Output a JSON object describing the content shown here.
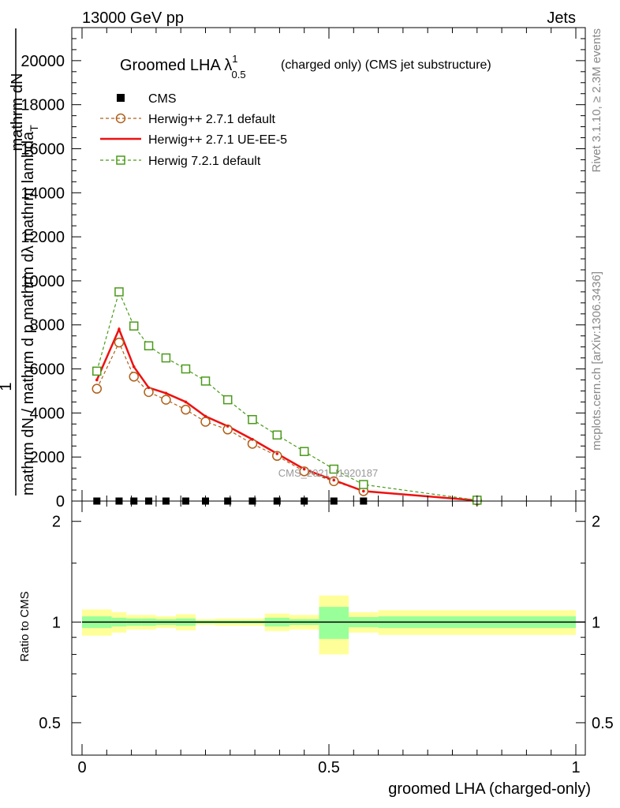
{
  "header": {
    "left": "13000 GeV pp",
    "right": "Jets",
    "side_top": "Rivet 3.1.10, ≥ 2.3M events",
    "side_bottom": "mcplots.cern.ch [arXiv:1306.3436]",
    "watermark": "CMS_2021_I1920187"
  },
  "chart_data": [
    {
      "type": "line",
      "title": "Groomed LHA λ",
      "title_sup": "1",
      "title_sub": "0.5",
      "title_suffix": "(charged only) (CMS jet substructure)",
      "ylabel_top": "mathrm dN",
      "ylabel_bottom": "mathrm dN / mathrm d p mathrm dλ  mathrm lambda",
      "ylabel_bottom_sub": "T",
      "ylabel_one": "1",
      "ylim": [
        0,
        21500
      ],
      "ytick_values": [
        0,
        2000,
        4000,
        6000,
        8000,
        10000,
        12000,
        14000,
        16000,
        18000,
        20000
      ],
      "ytick_labels": [
        "0",
        "2000",
        "4000",
        "6000",
        "8000",
        "10000",
        "12000",
        "14000",
        "16000",
        "18000",
        "20000"
      ],
      "xlim": [
        0,
        1
      ],
      "legend_position": "top-left",
      "series": [
        {
          "name": "CMS",
          "style": "data",
          "color": "#000000",
          "x": [
            0.03,
            0.075,
            0.105,
            0.135,
            0.17,
            0.21,
            0.25,
            0.295,
            0.345,
            0.395,
            0.45,
            0.51,
            0.57
          ],
          "values": [
            0,
            0,
            0,
            0,
            0,
            0,
            0,
            0,
            0,
            0,
            0,
            0,
            0
          ]
        },
        {
          "name": "Herwig++ 2.7.1 default",
          "style": "circle-dashed",
          "color": "#b0601a",
          "x": [
            0.03,
            0.075,
            0.105,
            0.135,
            0.17,
            0.21,
            0.25,
            0.295,
            0.345,
            0.395,
            0.45,
            0.51,
            0.57,
            0.8
          ],
          "values": [
            5100,
            7200,
            5650,
            4950,
            4600,
            4150,
            3600,
            3250,
            2600,
            2050,
            1350,
            900,
            450,
            30
          ]
        },
        {
          "name": "Herwig++ 2.7.1 UE-EE-5",
          "style": "solid",
          "color": "#ee1111",
          "x": [
            0.03,
            0.075,
            0.105,
            0.135,
            0.17,
            0.21,
            0.25,
            0.295,
            0.345,
            0.395,
            0.45,
            0.51,
            0.57,
            0.8
          ],
          "values": [
            5500,
            7800,
            6100,
            5150,
            4900,
            4500,
            3850,
            3400,
            2800,
            2150,
            1450,
            950,
            450,
            30
          ]
        },
        {
          "name": "Herwig 7.2.1 default",
          "style": "square-dashed",
          "color": "#4a9a1a",
          "x": [
            0.03,
            0.075,
            0.105,
            0.135,
            0.17,
            0.21,
            0.25,
            0.295,
            0.345,
            0.395,
            0.45,
            0.51,
            0.57,
            0.8
          ],
          "values": [
            5900,
            9500,
            7950,
            7050,
            6500,
            6000,
            5450,
            4600,
            3700,
            3000,
            2250,
            1450,
            750,
            40
          ]
        }
      ]
    },
    {
      "type": "line",
      "ylabel": "Ratio to CMS",
      "xlabel": "groomed LHA (charged-only)",
      "ylim": [
        0.4,
        2.3
      ],
      "xlim": [
        0,
        1
      ],
      "ytick_values": [
        0.5,
        1,
        2
      ],
      "ytick_labels": [
        "0.5",
        "1",
        "2"
      ],
      "xtick_values": [
        0,
        0.5,
        1
      ],
      "xtick_labels": [
        "0",
        "0.5",
        "1"
      ],
      "reference": 1,
      "bins": [
        {
          "lo": 0.0,
          "hi": 0.06,
          "stat": 0.04,
          "tot": 0.09
        },
        {
          "lo": 0.06,
          "hi": 0.09,
          "stat": 0.03,
          "tot": 0.07
        },
        {
          "lo": 0.09,
          "hi": 0.12,
          "stat": 0.025,
          "tot": 0.05
        },
        {
          "lo": 0.12,
          "hi": 0.15,
          "stat": 0.025,
          "tot": 0.05
        },
        {
          "lo": 0.15,
          "hi": 0.19,
          "stat": 0.02,
          "tot": 0.04
        },
        {
          "lo": 0.19,
          "hi": 0.23,
          "stat": 0.025,
          "tot": 0.055
        },
        {
          "lo": 0.23,
          "hi": 0.27,
          "stat": 0.01,
          "tot": 0.02
        },
        {
          "lo": 0.27,
          "hi": 0.32,
          "stat": 0.01,
          "tot": 0.025
        },
        {
          "lo": 0.32,
          "hi": 0.37,
          "stat": 0.01,
          "tot": 0.025
        },
        {
          "lo": 0.37,
          "hi": 0.42,
          "stat": 0.03,
          "tot": 0.06
        },
        {
          "lo": 0.42,
          "hi": 0.48,
          "stat": 0.02,
          "tot": 0.05
        },
        {
          "lo": 0.48,
          "hi": 0.54,
          "stat": 0.11,
          "tot": 0.2
        },
        {
          "lo": 0.54,
          "hi": 0.6,
          "stat": 0.035,
          "tot": 0.07
        },
        {
          "lo": 0.6,
          "hi": 1.0,
          "stat": 0.04,
          "tot": 0.085
        }
      ]
    }
  ]
}
